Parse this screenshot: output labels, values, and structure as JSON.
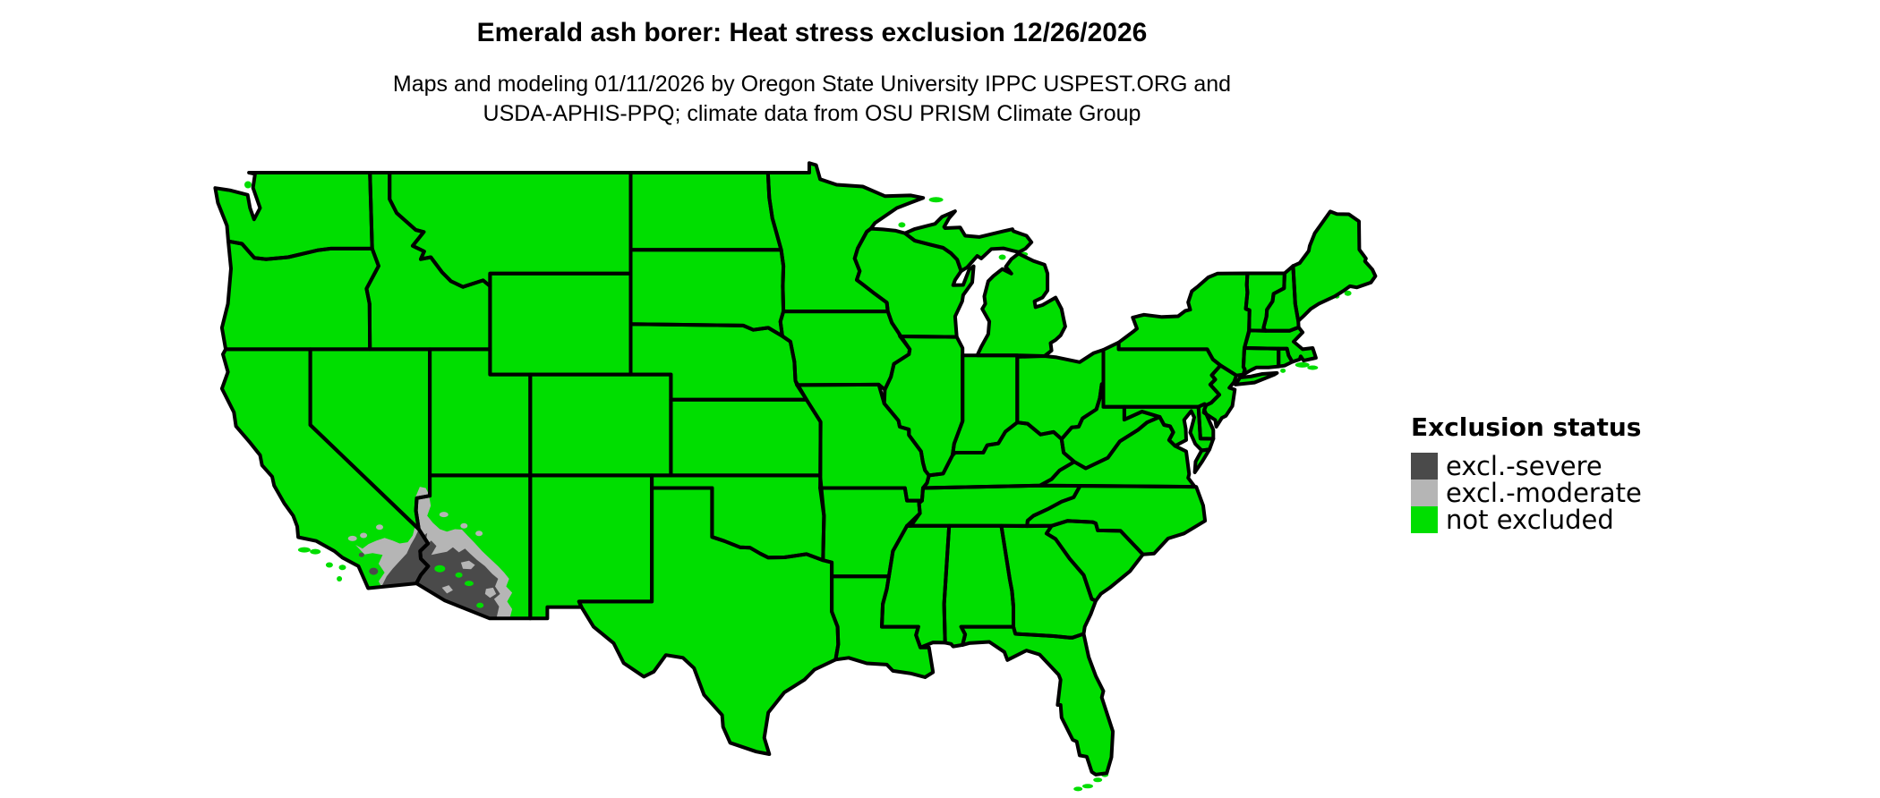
{
  "title": "Emerald ash borer: Heat stress exclusion 12/26/2026",
  "subtitle": {
    "line1": "Maps and modeling 01/11/2026 by Oregon State University IPPC USPEST.ORG and",
    "line2": "USDA-APHIS-PPQ; climate data from OSU PRISM Climate Group"
  },
  "legend": {
    "heading": "Exclusion status",
    "items": [
      {
        "id": "severe",
        "label": "excl.-severe",
        "color": "#4a4a4a"
      },
      {
        "id": "moderate",
        "label": "excl.-moderate",
        "color": "#b5b5b5"
      },
      {
        "id": "not_excluded",
        "label": "not excluded",
        "color": "#00de00"
      }
    ]
  },
  "map": {
    "colors": {
      "not_excluded": "#00de00",
      "moderate": "#b5b5b5",
      "severe": "#4a4a4a",
      "border": "#000000",
      "background": "#ffffff"
    }
  }
}
